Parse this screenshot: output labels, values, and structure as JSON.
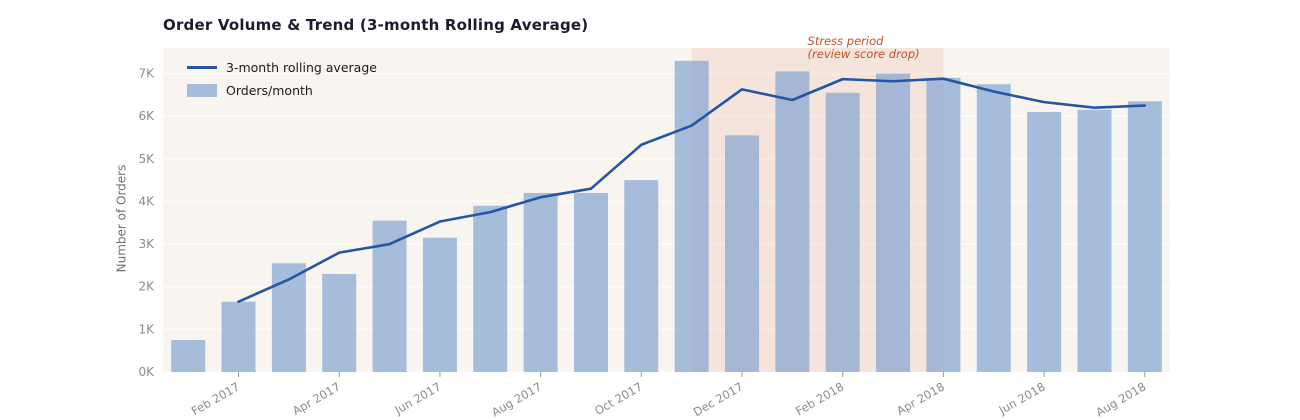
{
  "chart_data": {
    "type": "bar+line",
    "title": "Order Volume & Trend (3-month Rolling Average)",
    "ylabel": "Number of Orders",
    "xlabel": "",
    "categories": [
      "Jan 2017",
      "Feb 2017",
      "Mar 2017",
      "Apr 2017",
      "May 2017",
      "Jun 2017",
      "Jul 2017",
      "Aug 2017",
      "Sep 2017",
      "Oct 2017",
      "Nov 2017",
      "Dec 2017",
      "Jan 2018",
      "Feb 2018",
      "Mar 2018",
      "Apr 2018",
      "May 2018",
      "Jun 2018",
      "Jul 2018",
      "Aug 2018"
    ],
    "series": [
      {
        "name": "Orders/month",
        "kind": "bar",
        "color": "#8aa8d2",
        "fill_opacity": 0.75,
        "values": [
          750,
          1650,
          2550,
          2300,
          3550,
          3150,
          3900,
          4200,
          4200,
          4500,
          7300,
          5550,
          7050,
          6550,
          7000,
          6900,
          6750,
          6100,
          6150,
          6350
        ]
      },
      {
        "name": "3-month rolling average",
        "kind": "line",
        "color": "#2456a4",
        "values": [
          null,
          1650,
          2170,
          2800,
          3000,
          3530,
          3750,
          4100,
          4300,
          5330,
          5780,
          6630,
          6380,
          6870,
          6820,
          6880,
          6580,
          6330,
          6200,
          6250
        ]
      }
    ],
    "x_tick_indices": [
      1,
      3,
      5,
      7,
      9,
      11,
      13,
      15,
      17,
      19
    ],
    "x_tick_labels": [
      "Feb 2017",
      "Apr 2017",
      "Jun 2017",
      "Aug 2017",
      "Oct 2017",
      "Dec 2017",
      "Feb 2018",
      "Apr 2018",
      "Jun 2018",
      "Aug 2018"
    ],
    "y_ticks": [
      0,
      1000,
      2000,
      3000,
      4000,
      5000,
      6000,
      7000
    ],
    "y_tick_labels": [
      "0K",
      "1K",
      "2K",
      "3K",
      "4K",
      "5K",
      "6K",
      "7K"
    ],
    "ylim": [
      0,
      7600
    ],
    "grid": true,
    "plot_bg": "#f8f5f1",
    "legend_position": "top-left",
    "annotation": {
      "line1": "Stress period",
      "line2": "(review score drop)",
      "color": "#c0522b",
      "region_start": "Nov 2017",
      "region_end": "Apr 2018",
      "region_color": "#e8926a",
      "region_opacity": 0.16
    }
  }
}
